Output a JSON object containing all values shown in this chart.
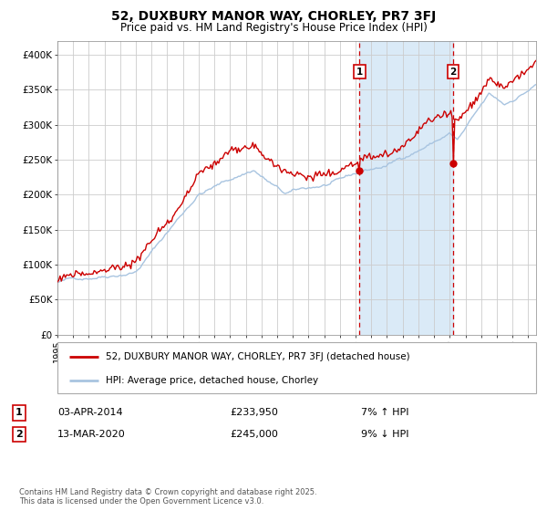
{
  "title": "52, DUXBURY MANOR WAY, CHORLEY, PR7 3FJ",
  "subtitle": "Price paid vs. HM Land Registry's House Price Index (HPI)",
  "legend_line1": "52, DUXBURY MANOR WAY, CHORLEY, PR7 3FJ (detached house)",
  "legend_line2": "HPI: Average price, detached house, Chorley",
  "annotation1_date": "03-APR-2014",
  "annotation1_price": 233950,
  "annotation1_price_str": "£233,950",
  "annotation1_pct": "7% ↑ HPI",
  "annotation1_year": 2014.25,
  "annotation2_date": "13-MAR-2020",
  "annotation2_price": 245000,
  "annotation2_price_str": "£245,000",
  "annotation2_pct": "9% ↓ HPI",
  "annotation2_year": 2020.2,
  "ylim": [
    0,
    420000
  ],
  "xlim_start": 1995,
  "xlim_end": 2025.5,
  "background_color": "#ffffff",
  "grid_color": "#cccccc",
  "hpi_line_color": "#a8c4e0",
  "price_line_color": "#cc0000",
  "shading_color": "#daeaf7",
  "vline_color": "#cc0000",
  "footer_text": "Contains HM Land Registry data © Crown copyright and database right 2025.\nThis data is licensed under the Open Government Licence v3.0.",
  "yticks": [
    0,
    50000,
    100000,
    150000,
    200000,
    250000,
    300000,
    350000,
    400000
  ],
  "ytick_labels": [
    "£0",
    "£50K",
    "£100K",
    "£150K",
    "£200K",
    "£250K",
    "£300K",
    "£350K",
    "£400K"
  ]
}
